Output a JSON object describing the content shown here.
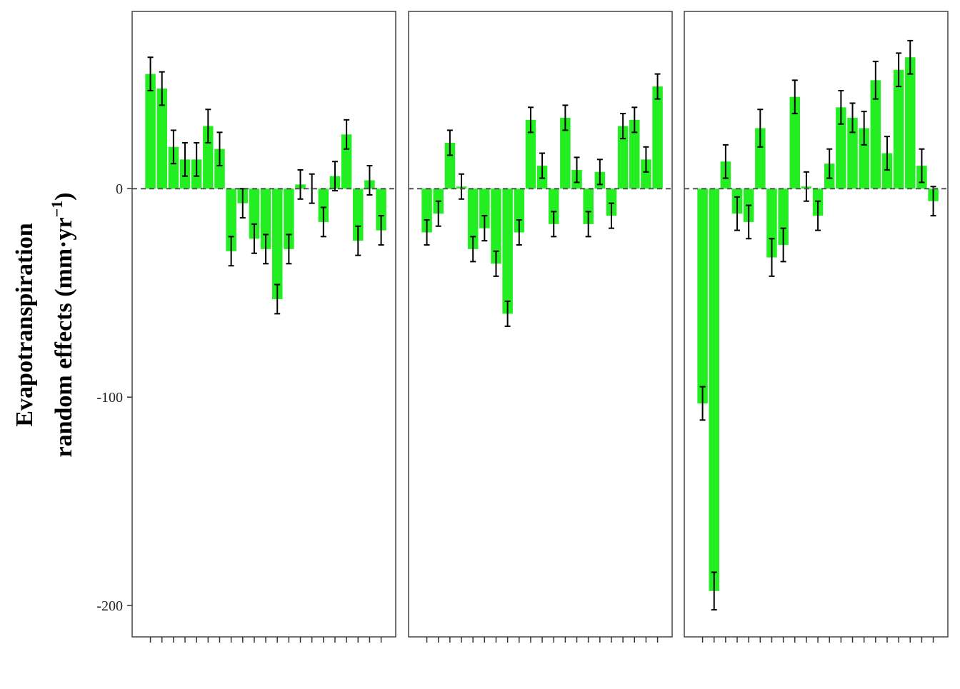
{
  "chart_data": {
    "type": "bar",
    "title": "",
    "ylabel": {
      "line1": "Evapotranspiration",
      "line2_prefix": "random effects (mm·yr",
      "line2_sup": "−1",
      "line2_suffix": ")"
    },
    "ylim": [
      -215,
      85
    ],
    "yticks": [
      0,
      -100,
      -200
    ],
    "ytick_labels": [
      "0",
      "-100",
      "-200"
    ],
    "reference_line": {
      "y": 0,
      "style": "dashed",
      "color": "#555555"
    },
    "bar_color": "#22ee22",
    "error_bar_color": "#000000",
    "grid": false,
    "legend": "none",
    "panels": [
      {
        "name": "panel-1",
        "values": [
          55,
          48,
          20,
          14,
          14,
          30,
          19,
          -30,
          -7,
          -24,
          -29,
          -53,
          -29,
          2,
          0,
          -16,
          6,
          26,
          -25,
          4,
          -20
        ],
        "errors": [
          8,
          8,
          8,
          8,
          8,
          8,
          8,
          7,
          7,
          7,
          7,
          7,
          7,
          7,
          7,
          7,
          7,
          7,
          7,
          7,
          7
        ]
      },
      {
        "name": "panel-2",
        "values": [
          -21,
          -12,
          22,
          1,
          -29,
          -19,
          -36,
          -60,
          -21,
          33,
          11,
          -17,
          34,
          9,
          -17,
          8,
          -13,
          30,
          33,
          14,
          49
        ],
        "errors": [
          6,
          6,
          6,
          6,
          6,
          6,
          6,
          6,
          6,
          6,
          6,
          6,
          6,
          6,
          6,
          6,
          6,
          6,
          6,
          6,
          6
        ]
      },
      {
        "name": "panel-3",
        "values": [
          -103,
          -193,
          13,
          -12,
          -16,
          29,
          -33,
          -27,
          44,
          1,
          -13,
          12,
          39,
          34,
          29,
          52,
          17,
          57,
          63,
          11,
          -6
        ],
        "errors": [
          8,
          9,
          8,
          8,
          8,
          9,
          9,
          8,
          8,
          7,
          7,
          7,
          8,
          7,
          8,
          9,
          8,
          8,
          8,
          8,
          7
        ]
      }
    ]
  }
}
